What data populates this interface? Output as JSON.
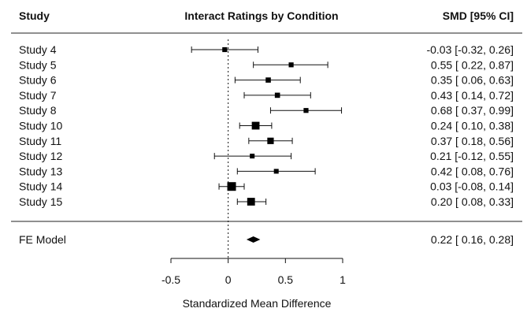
{
  "header": {
    "study_label": "Study",
    "title": "Interact Ratings by Condition",
    "est_label": "SMD [95% CI]"
  },
  "chart_data": {
    "type": "forest",
    "title": "Interact Ratings by Condition",
    "xlabel": "Standardized Mean Difference",
    "xlim": [
      -0.5,
      1
    ],
    "xticks": [
      -0.5,
      0,
      0.5,
      1
    ],
    "xtick_labels": [
      "-0.5",
      "0",
      "0.5",
      "1"
    ],
    "reference_line": 0,
    "studies": [
      {
        "name": "Study 4",
        "est": -0.03,
        "lo": -0.32,
        "hi": 0.26,
        "text": "-0.03 [-0.32, 0.26]",
        "weight": 0.4
      },
      {
        "name": "Study 5",
        "est": 0.55,
        "lo": 0.22,
        "hi": 0.87,
        "text": "0.55 [ 0.22, 0.87]",
        "weight": 0.4
      },
      {
        "name": "Study 6",
        "est": 0.35,
        "lo": 0.06,
        "hi": 0.63,
        "text": "0.35 [ 0.06, 0.63]",
        "weight": 0.45
      },
      {
        "name": "Study 7",
        "est": 0.43,
        "lo": 0.14,
        "hi": 0.72,
        "text": "0.43 [ 0.14, 0.72]",
        "weight": 0.45
      },
      {
        "name": "Study 8",
        "est": 0.68,
        "lo": 0.37,
        "hi": 0.99,
        "text": "0.68 [ 0.37, 0.99]",
        "weight": 0.4
      },
      {
        "name": "Study 10",
        "est": 0.24,
        "lo": 0.1,
        "hi": 0.38,
        "text": "0.24 [ 0.10, 0.38]",
        "weight": 0.85
      },
      {
        "name": "Study 11",
        "est": 0.37,
        "lo": 0.18,
        "hi": 0.56,
        "text": "0.37 [ 0.18, 0.56]",
        "weight": 0.65
      },
      {
        "name": "Study 12",
        "est": 0.21,
        "lo": -0.12,
        "hi": 0.55,
        "text": "0.21 [-0.12, 0.55]",
        "weight": 0.38
      },
      {
        "name": "Study 13",
        "est": 0.42,
        "lo": 0.08,
        "hi": 0.76,
        "text": "0.42 [ 0.08, 0.76]",
        "weight": 0.38
      },
      {
        "name": "Study 14",
        "est": 0.03,
        "lo": -0.08,
        "hi": 0.14,
        "text": "0.03 [-0.08, 0.14]",
        "weight": 1.0
      },
      {
        "name": "Study 15",
        "est": 0.2,
        "lo": 0.08,
        "hi": 0.33,
        "text": "0.20 [ 0.08, 0.33]",
        "weight": 0.85
      }
    ],
    "summary": {
      "name": "FE Model",
      "est": 0.22,
      "lo": 0.16,
      "hi": 0.28,
      "text": "0.22 [ 0.16, 0.28]"
    }
  }
}
